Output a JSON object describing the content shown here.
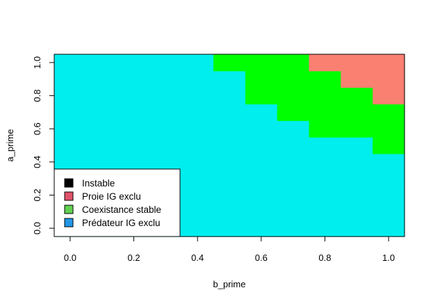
{
  "chart_data": {
    "type": "heatmap",
    "title": "",
    "xlabel": "b_prime",
    "ylabel": "a_prime",
    "xlim": [
      -0.05,
      1.05
    ],
    "ylim": [
      -0.05,
      1.05
    ],
    "x_ticks": [
      "0.0",
      "0.2",
      "0.4",
      "0.6",
      "0.8",
      "1.0"
    ],
    "y_ticks": [
      "0.0",
      "0.2",
      "0.4",
      "0.6",
      "0.8",
      "1.0"
    ],
    "x": [
      0.0,
      0.1,
      0.2,
      0.3,
      0.4,
      0.5,
      0.6,
      0.7,
      0.8,
      0.9,
      1.0
    ],
    "y": [
      0.0,
      0.1,
      0.2,
      0.3,
      0.4,
      0.5,
      0.6,
      0.7,
      0.8,
      0.9,
      1.0
    ],
    "cell_colors": {
      "cyan": "#00EEEE",
      "green": "#00FF00",
      "salmon": "#FA8072"
    },
    "z": [
      [
        "cyan",
        "cyan",
        "cyan",
        "cyan",
        "cyan",
        "cyan",
        "cyan",
        "cyan",
        "cyan",
        "cyan",
        "cyan"
      ],
      [
        "cyan",
        "cyan",
        "cyan",
        "cyan",
        "cyan",
        "cyan",
        "cyan",
        "cyan",
        "cyan",
        "cyan",
        "cyan"
      ],
      [
        "cyan",
        "cyan",
        "cyan",
        "cyan",
        "cyan",
        "cyan",
        "cyan",
        "cyan",
        "cyan",
        "cyan",
        "cyan"
      ],
      [
        "cyan",
        "cyan",
        "cyan",
        "cyan",
        "cyan",
        "cyan",
        "cyan",
        "cyan",
        "cyan",
        "cyan",
        "cyan"
      ],
      [
        "cyan",
        "cyan",
        "cyan",
        "cyan",
        "cyan",
        "cyan",
        "cyan",
        "cyan",
        "cyan",
        "cyan",
        "cyan"
      ],
      [
        "cyan",
        "cyan",
        "cyan",
        "cyan",
        "cyan",
        "cyan",
        "cyan",
        "cyan",
        "cyan",
        "cyan",
        "green"
      ],
      [
        "cyan",
        "cyan",
        "cyan",
        "cyan",
        "cyan",
        "cyan",
        "cyan",
        "cyan",
        "green",
        "green",
        "green"
      ],
      [
        "cyan",
        "cyan",
        "cyan",
        "cyan",
        "cyan",
        "cyan",
        "cyan",
        "green",
        "green",
        "green",
        "green"
      ],
      [
        "cyan",
        "cyan",
        "cyan",
        "cyan",
        "cyan",
        "cyan",
        "green",
        "green",
        "green",
        "green",
        "salmon"
      ],
      [
        "cyan",
        "cyan",
        "cyan",
        "cyan",
        "cyan",
        "cyan",
        "green",
        "green",
        "green",
        "salmon",
        "salmon"
      ],
      [
        "cyan",
        "cyan",
        "cyan",
        "cyan",
        "cyan",
        "green",
        "green",
        "green",
        "salmon",
        "salmon",
        "salmon"
      ]
    ],
    "legend": {
      "position": "bottom-left",
      "entries": [
        {
          "label": "Instable",
          "color": "#000000"
        },
        {
          "label": "Proie IG exclu",
          "color": "#DF536B"
        },
        {
          "label": "Coexistance stable",
          "color": "#61D04F"
        },
        {
          "label": "Prédateur IG exclu",
          "color": "#2297E6"
        }
      ]
    }
  }
}
